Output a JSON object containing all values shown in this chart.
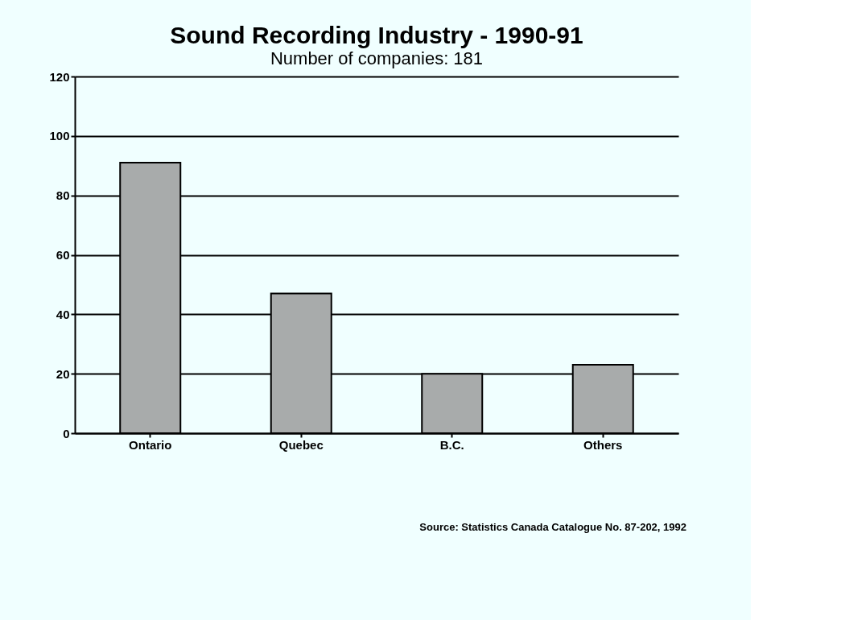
{
  "chart_data": {
    "type": "bar",
    "title": "Sound Recording Industry - 1990-91",
    "subtitle": "Number of companies: 181",
    "categories": [
      "Ontario",
      "Quebec",
      "B.C.",
      "Others"
    ],
    "values": [
      91,
      47,
      20,
      23
    ],
    "color": "#a8abab",
    "ylim": [
      0,
      120
    ],
    "yticks": [
      0,
      20,
      40,
      60,
      80,
      100,
      120
    ],
    "grid": "y",
    "annotations": [
      "Source: Statistics Canada Catalogue No. 87-202, 1992"
    ]
  }
}
